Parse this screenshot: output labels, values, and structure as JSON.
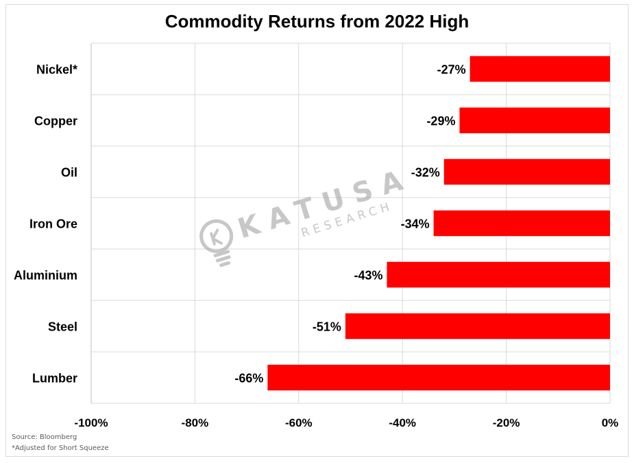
{
  "chart_data": {
    "type": "bar",
    "orientation": "horizontal",
    "title": "Commodity Returns from 2022 High",
    "categories": [
      "Nickel*",
      "Copper",
      "Oil",
      "Iron Ore",
      "Aluminium",
      "Steel",
      "Lumber"
    ],
    "values": [
      -27,
      -29,
      -32,
      -34,
      -43,
      -51,
      -66
    ],
    "data_labels": [
      "-27%",
      "-29%",
      "-32%",
      "-34%",
      "-43%",
      "-51%",
      "-66%"
    ],
    "xlim": [
      -100,
      0
    ],
    "x_ticks": [
      -100,
      -80,
      -60,
      -40,
      -20,
      0
    ],
    "x_tick_labels": [
      "-100%",
      "-80%",
      "-60%",
      "-40%",
      "-20%",
      "0%"
    ],
    "grid": true,
    "bar_color": "#ff0000"
  },
  "notes": {
    "source": "Source: Bloomberg",
    "footnote": "*Adjusted for Short Squeeze"
  },
  "watermark": {
    "brand": "KATUSA",
    "sub": "RESEARCH",
    "icon": "lightbulb-icon",
    "color": "#bfbfbf"
  }
}
